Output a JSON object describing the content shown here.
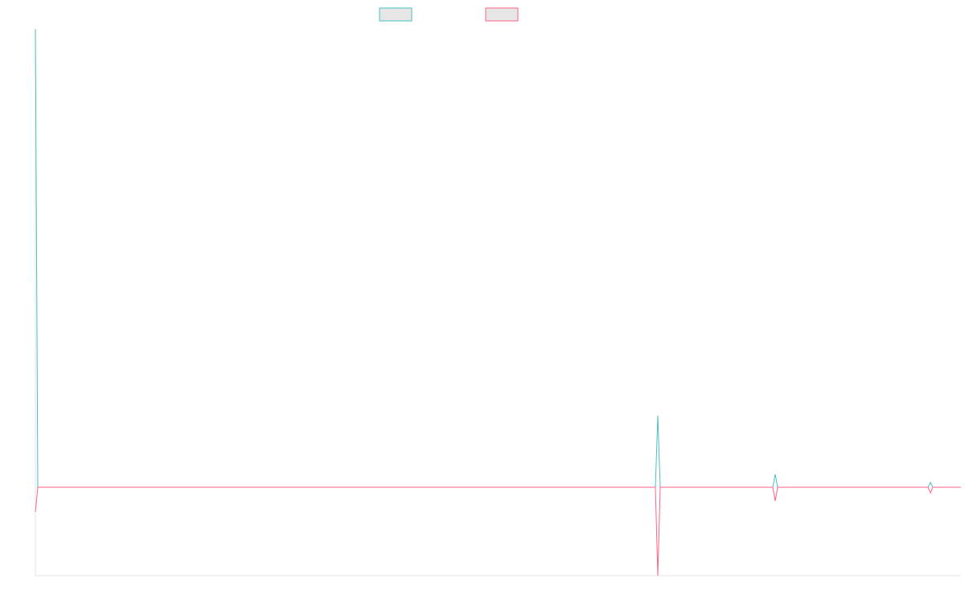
{
  "chart_data": {
    "type": "line",
    "x": [
      0,
      3,
      771,
      774,
      777,
      917,
      920,
      923,
      1110,
      1113,
      1116,
      1151
    ],
    "xlim": [
      0,
      1151
    ],
    "ylim": [
      -110,
      570
    ],
    "series": [
      {
        "color": "#ff6384",
        "values": [
          -31,
          0,
          0,
          -110,
          0,
          0,
          -17,
          0,
          0,
          -7,
          0,
          0
        ]
      },
      {
        "color": "#4bc0c0",
        "values": [
          570,
          0,
          0,
          89,
          0,
          0,
          16,
          0,
          0,
          6,
          0,
          0
        ]
      }
    ]
  }
}
